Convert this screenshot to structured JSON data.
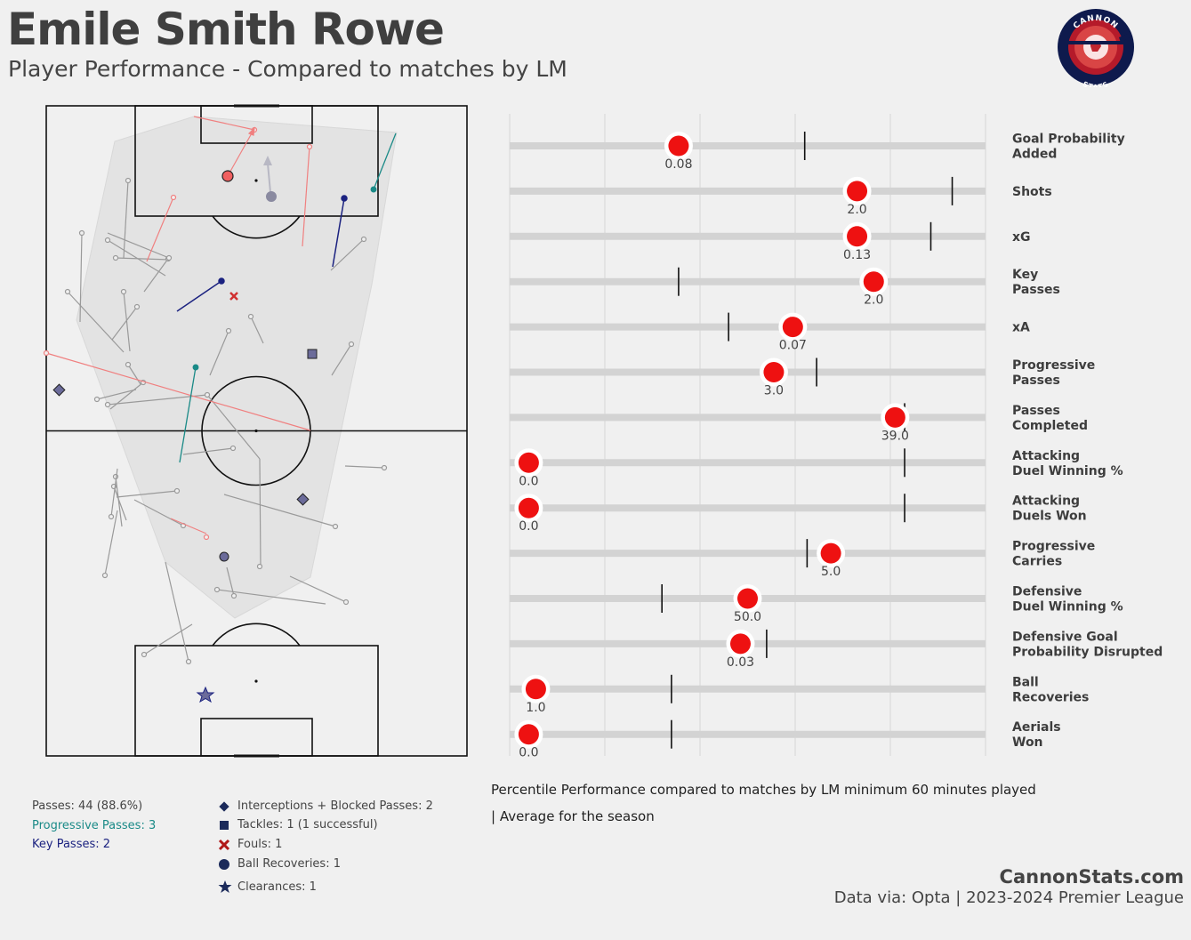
{
  "header": {
    "player_name": "Emile Smith Rowe",
    "subtitle": "Player Performance - Compared to matches by LM"
  },
  "logo": {
    "top_text": "CANNON",
    "bottom_text": "STATS",
    "colors": {
      "outer": "#0e1a4d",
      "ring": "#b51a2a",
      "inner": "#d93a3a"
    }
  },
  "pitch_legend": {
    "passes": "Passes: 44 (88.6%)",
    "progressive_passes": "Progressive Passes: 3",
    "key_passes": "Key Passes: 2",
    "colors": {
      "passes": "#9a9a9a",
      "progressive": "#1a8a87",
      "key": "#1b2280",
      "failed": "#f08080"
    }
  },
  "event_key": [
    {
      "icon": "diamond-icon",
      "label": "Interceptions + Blocked Passes: 2"
    },
    {
      "icon": "square-icon",
      "label": "Tackles: 1 (1 successful)"
    },
    {
      "icon": "cross-icon",
      "label": "Fouls: 1"
    },
    {
      "icon": "circle-icon",
      "label": "Ball Recoveries: 1"
    },
    {
      "icon": "star-icon",
      "label": "Clearances: 1"
    }
  ],
  "chart_data": {
    "type": "scatter",
    "orientation": "horizontal",
    "xlim": [
      0,
      100
    ],
    "xticks": [
      "0",
      "20",
      "40",
      "60",
      "80",
      "100"
    ],
    "xlabel": "Percentile Performance compared to matches by LM minimum 60 minutes played",
    "average_note": "| Average for the season",
    "marker_color": "#ee1111",
    "metrics": [
      {
        "name": [
          "Goal Probability",
          "Added"
        ],
        "percentile": 35.5,
        "value_label": "0.08",
        "season_avg": 62
      },
      {
        "name": [
          "Shots"
        ],
        "percentile": 73,
        "value_label": "2.0",
        "season_avg": 93
      },
      {
        "name": [
          "xG"
        ],
        "percentile": 73,
        "value_label": "0.13",
        "season_avg": 88.5
      },
      {
        "name": [
          "Key",
          "Passes"
        ],
        "percentile": 76.5,
        "value_label": "2.0",
        "season_avg": 35.5
      },
      {
        "name": [
          "xA"
        ],
        "percentile": 59.5,
        "value_label": "0.07",
        "season_avg": 46
      },
      {
        "name": [
          "Progressive",
          "Passes"
        ],
        "percentile": 55.5,
        "value_label": "3.0",
        "season_avg": 64.5
      },
      {
        "name": [
          "Passes",
          "Completed"
        ],
        "percentile": 81,
        "value_label": "39.0",
        "season_avg": 83
      },
      {
        "name": [
          "Attacking",
          "Duel Winning %"
        ],
        "percentile": 4,
        "value_label": "0.0",
        "season_avg": 83
      },
      {
        "name": [
          "Attacking",
          "Duels Won"
        ],
        "percentile": 4,
        "value_label": "0.0",
        "season_avg": 83
      },
      {
        "name": [
          "Progressive",
          "Carries"
        ],
        "percentile": 67.5,
        "value_label": "5.0",
        "season_avg": 62.5
      },
      {
        "name": [
          "Defensive",
          "Duel Winning %"
        ],
        "percentile": 50,
        "value_label": "50.0",
        "season_avg": 32
      },
      {
        "name": [
          "Defensive Goal",
          "Probability Disrupted"
        ],
        "percentile": 48.5,
        "value_label": "0.03",
        "season_avg": 54
      },
      {
        "name": [
          "Ball",
          "Recoveries"
        ],
        "percentile": 5.5,
        "value_label": "1.0",
        "season_avg": 34
      },
      {
        "name": [
          "Aerials",
          "Won"
        ],
        "percentile": 4,
        "value_label": "0.0",
        "season_avg": 34
      }
    ]
  },
  "footer": {
    "site": "CannonStats.com",
    "source": "Data via: Opta | 2023-2024 Premier League"
  }
}
